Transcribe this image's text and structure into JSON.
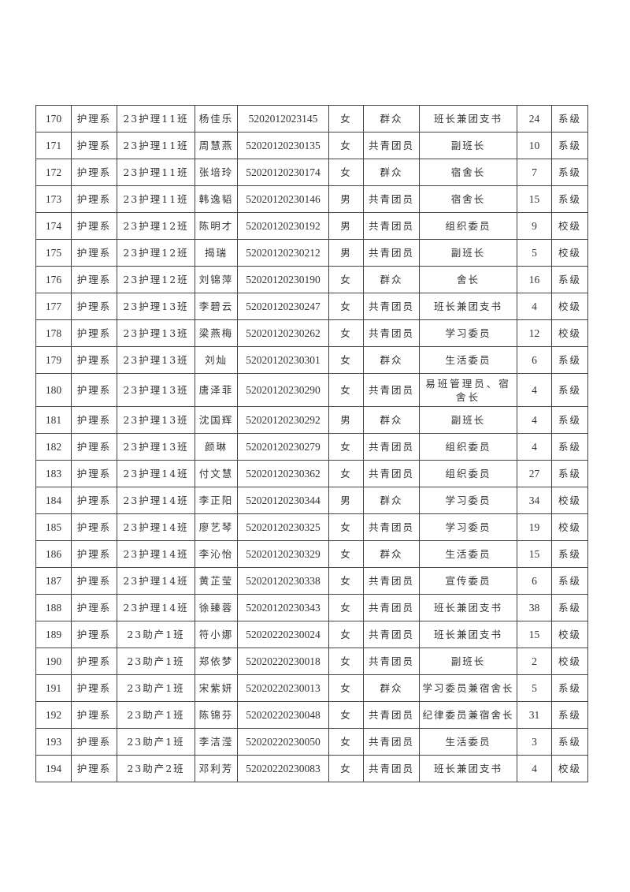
{
  "table": {
    "rows": [
      [
        "170",
        "护理系",
        "23护理11班",
        "杨佳乐",
        "5202012023145",
        "女",
        "群众",
        "班长兼团支书",
        "24",
        "系级"
      ],
      [
        "171",
        "护理系",
        "23护理11班",
        "周慧燕",
        "52020120230135",
        "女",
        "共青团员",
        "副班长",
        "10",
        "系级"
      ],
      [
        "172",
        "护理系",
        "23护理11班",
        "张培玲",
        "52020120230174",
        "女",
        "群众",
        "宿舍长",
        "7",
        "系级"
      ],
      [
        "173",
        "护理系",
        "23护理11班",
        "韩逸韬",
        "52020120230146",
        "男",
        "共青团员",
        "宿舍长",
        "15",
        "系级"
      ],
      [
        "174",
        "护理系",
        "23护理12班",
        "陈明才",
        "52020120230192",
        "男",
        "共青团员",
        "组织委员",
        "9",
        "校级"
      ],
      [
        "175",
        "护理系",
        "23护理12班",
        "揭瑞",
        "52020120230212",
        "男",
        "共青团员",
        "副班长",
        "5",
        "校级"
      ],
      [
        "176",
        "护理系",
        "23护理12班",
        "刘锦萍",
        "52020120230190",
        "女",
        "群众",
        "舍长",
        "16",
        "系级"
      ],
      [
        "177",
        "护理系",
        "23护理13班",
        "李碧云",
        "52020120230247",
        "女",
        "共青团员",
        "班长兼团支书",
        "4",
        "校级"
      ],
      [
        "178",
        "护理系",
        "23护理13班",
        "梁燕梅",
        "52020120230262",
        "女",
        "共青团员",
        "学习委员",
        "12",
        "校级"
      ],
      [
        "179",
        "护理系",
        "23护理13班",
        "刘灿",
        "52020120230301",
        "女",
        "群众",
        "生活委员",
        "6",
        "系级"
      ],
      [
        "180",
        "护理系",
        "23护理13班",
        "唐泽菲",
        "52020120230290",
        "女",
        "共青团员",
        "易班管理员、宿舍长",
        "4",
        "系级"
      ],
      [
        "181",
        "护理系",
        "23护理13班",
        "沈国辉",
        "52020120230292",
        "男",
        "群众",
        "副班长",
        "4",
        "系级"
      ],
      [
        "182",
        "护理系",
        "23护理13班",
        "颜琳",
        "52020120230279",
        "女",
        "共青团员",
        "组织委员",
        "4",
        "系级"
      ],
      [
        "183",
        "护理系",
        "23护理14班",
        "付文慧",
        "52020120230362",
        "女",
        "共青团员",
        "组织委员",
        "27",
        "系级"
      ],
      [
        "184",
        "护理系",
        "23护理14班",
        "李正阳",
        "52020120230344",
        "男",
        "群众",
        "学习委员",
        "34",
        "校级"
      ],
      [
        "185",
        "护理系",
        "23护理14班",
        "廖艺琴",
        "52020120230325",
        "女",
        "共青团员",
        "学习委员",
        "19",
        "校级"
      ],
      [
        "186",
        "护理系",
        "23护理14班",
        "李沁怡",
        "52020120230329",
        "女",
        "群众",
        "生活委员",
        "15",
        "系级"
      ],
      [
        "187",
        "护理系",
        "23护理14班",
        "黄芷莹",
        "52020120230338",
        "女",
        "共青团员",
        "宣传委员",
        "6",
        "系级"
      ],
      [
        "188",
        "护理系",
        "23护理14班",
        "徐臻蓉",
        "52020120230343",
        "女",
        "共青团员",
        "班长兼团支书",
        "38",
        "系级"
      ],
      [
        "189",
        "护理系",
        "23助产1班",
        "符小娜",
        "52020220230024",
        "女",
        "共青团员",
        "班长兼团支书",
        "15",
        "校级"
      ],
      [
        "190",
        "护理系",
        "23助产1班",
        "郑依梦",
        "52020220230018",
        "女",
        "共青团员",
        "副班长",
        "2",
        "校级"
      ],
      [
        "191",
        "护理系",
        "23助产1班",
        "宋紫妍",
        "52020220230013",
        "女",
        "群众",
        "学习委员兼宿舍长",
        "5",
        "系级"
      ],
      [
        "192",
        "护理系",
        "23助产1班",
        "陈锦芬",
        "52020220230048",
        "女",
        "共青团员",
        "纪律委员兼宿舍长",
        "31",
        "系级"
      ],
      [
        "193",
        "护理系",
        "23助产1班",
        "李洁滢",
        "52020220230050",
        "女",
        "共青团员",
        "生活委员",
        "3",
        "系级"
      ],
      [
        "194",
        "护理系",
        "23助产2班",
        "邓利芳",
        "52020220230083",
        "女",
        "共青团员",
        "班长兼团支书",
        "4",
        "校级"
      ]
    ]
  }
}
